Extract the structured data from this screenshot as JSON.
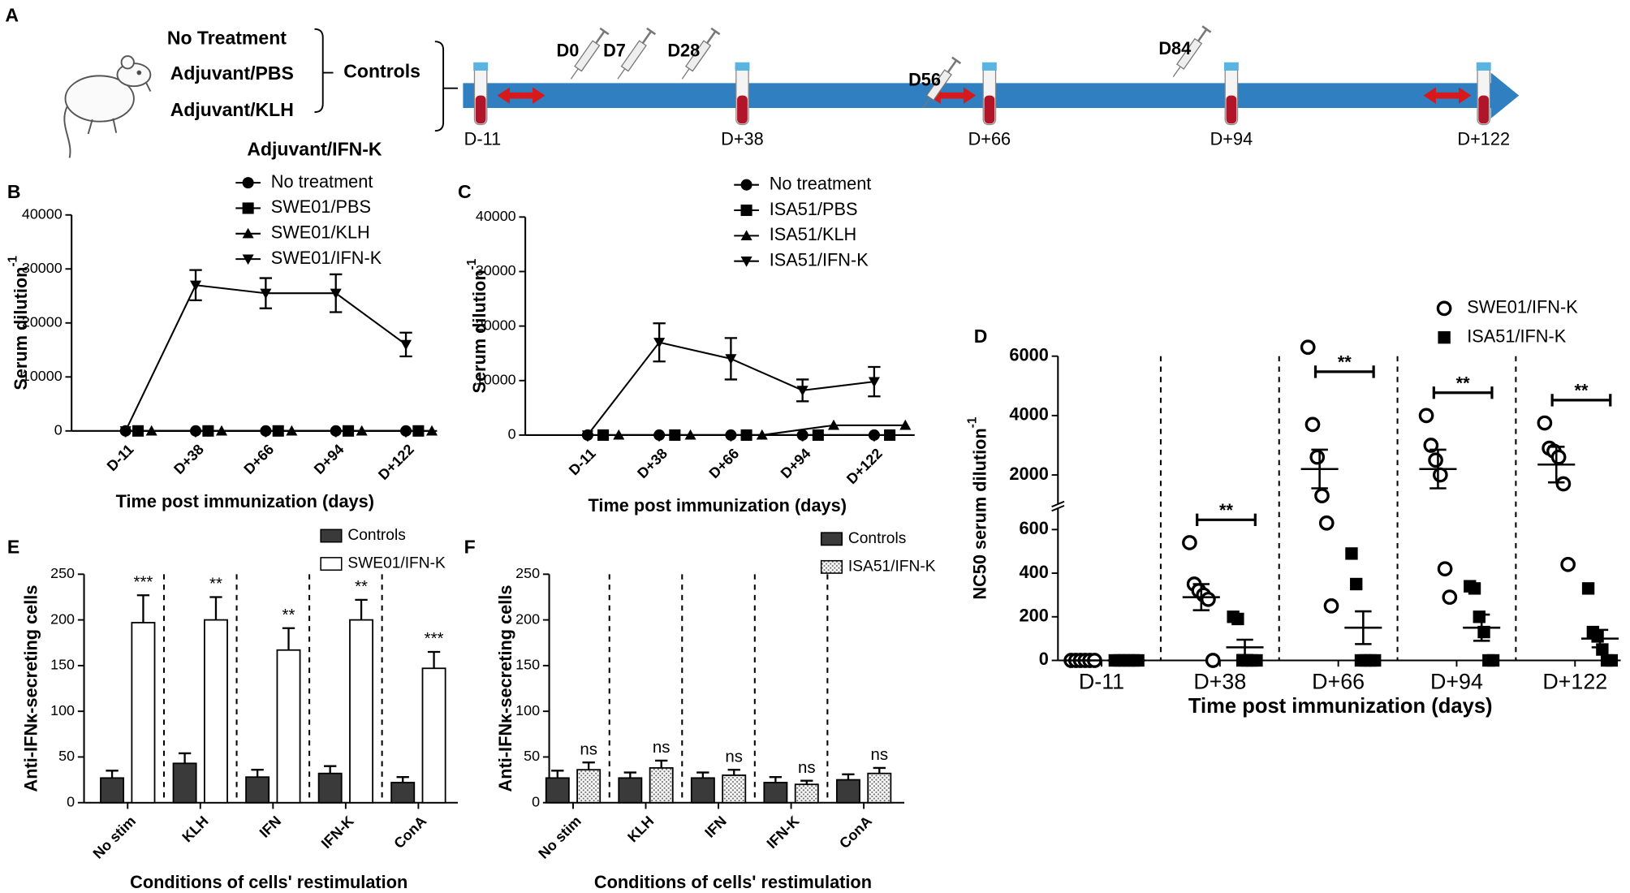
{
  "timeline": {
    "panel": "A",
    "groups": [
      "No Treatment",
      "Adjuvant/PBS",
      "Adjuvant/KLH"
    ],
    "controls": "Controls",
    "treated": "Adjuvant/IFN-K",
    "injections": [
      "D0",
      "D7",
      "D28",
      "D56",
      "D84"
    ],
    "bleeds": [
      "D-11",
      "D+38",
      "D+66",
      "D+94",
      "D+122"
    ]
  },
  "chart_data": [
    {
      "panel": "B",
      "type": "line",
      "ylabel": "Serum dilution",
      "ylabel_sup": "-1",
      "xlabel": "Time post immunization (days)",
      "categories": [
        "D-11",
        "D+38",
        "D+66",
        "D+94",
        "D+122"
      ],
      "ylim": [
        0,
        40000
      ],
      "yticks": [
        0,
        10000,
        20000,
        30000,
        40000
      ],
      "series": [
        {
          "name": "No treatment",
          "marker": "circle",
          "color": "#000000",
          "values": [
            0,
            0,
            0,
            0,
            0
          ]
        },
        {
          "name": "SWE01/PBS",
          "marker": "square",
          "color": "#000000",
          "values": [
            0,
            0,
            0,
            0,
            0
          ]
        },
        {
          "name": "SWE01/KLH",
          "marker": "triangle",
          "color": "#000000",
          "values": [
            0,
            0,
            0,
            0,
            0
          ]
        },
        {
          "name": "SWE01/IFN-K",
          "marker": "triangle-down",
          "color": "#000000",
          "values": [
            0,
            27000,
            25500,
            25500,
            16000
          ],
          "errors": [
            null,
            2800,
            2800,
            3500,
            2200
          ]
        }
      ]
    },
    {
      "panel": "C",
      "type": "line",
      "ylabel": "Serum dilution",
      "ylabel_sup": "-1",
      "xlabel": "Time post immunization (days)",
      "categories": [
        "D-11",
        "D+38",
        "D+66",
        "D+94",
        "D+122"
      ],
      "ylim": [
        0,
        40000
      ],
      "yticks": [
        0,
        10000,
        20000,
        30000,
        40000
      ],
      "series": [
        {
          "name": "No treatment",
          "marker": "circle",
          "color": "#000000",
          "values": [
            0,
            0,
            0,
            0,
            0
          ]
        },
        {
          "name": "ISA51/PBS",
          "marker": "square",
          "color": "#000000",
          "values": [
            0,
            0,
            0,
            0,
            0
          ]
        },
        {
          "name": "ISA51/KLH",
          "marker": "triangle",
          "color": "#000000",
          "values": [
            0,
            0,
            0,
            1800,
            1800
          ]
        },
        {
          "name": "ISA51/IFN-K",
          "marker": "triangle-down",
          "color": "#000000",
          "values": [
            0,
            17000,
            14000,
            8200,
            9800
          ],
          "errors": [
            null,
            3500,
            3800,
            2000,
            2700
          ]
        }
      ]
    },
    {
      "panel": "D",
      "type": "strip",
      "ylabel": "NC50 serum dilution",
      "ylabel_sup": "-1",
      "xlabel": "Time post immunization (days)",
      "categories": [
        "D-11",
        "D+38",
        "D+66",
        "D+94",
        "D+122"
      ],
      "ylim": [
        0,
        6000
      ],
      "ybreak": [
        700,
        1000
      ],
      "yticks": [
        0,
        200,
        400,
        600,
        2000,
        4000,
        6000
      ],
      "annotations": [
        null,
        "**",
        "**",
        "**",
        "**"
      ],
      "series": [
        {
          "name": "SWE01/IFN-K",
          "marker": "open-circle",
          "color": "#000000",
          "values": [
            [
              0,
              0,
              0,
              0,
              0,
              0
            ],
            [
              540,
              350,
              320,
              300,
              280,
              0
            ],
            [
              6300,
              3700,
              2600,
              1300,
              630,
              250
            ],
            [
              4000,
              3000,
              2500,
              2000,
              420,
              290
            ],
            [
              3750,
              2900,
              2800,
              2600,
              1700,
              440
            ]
          ],
          "means": [
            0,
            290,
            2200,
            2200,
            2350
          ],
          "errors": [
            0,
            60,
            650,
            650,
            600
          ]
        },
        {
          "name": "ISA51/IFN-K",
          "marker": "square",
          "color": "#000000",
          "values": [
            [
              0,
              0,
              0,
              0,
              0,
              0
            ],
            [
              200,
              190,
              0,
              0,
              0,
              0
            ],
            [
              490,
              350,
              0,
              0,
              0,
              0
            ],
            [
              340,
              330,
              200,
              130,
              0,
              0
            ],
            [
              330,
              130,
              110,
              50,
              0,
              0
            ]
          ],
          "means": [
            0,
            60,
            150,
            150,
            100
          ],
          "errors": [
            0,
            35,
            75,
            60,
            40
          ]
        }
      ]
    },
    {
      "panel": "E",
      "type": "bar",
      "ylabel": "Anti-IFNκ-secreting cells",
      "xlabel": "Conditions of cells' restimulation",
      "categories": [
        "No stim",
        "KLH",
        "IFN",
        "IFN-K",
        "ConA"
      ],
      "ylim": [
        0,
        250
      ],
      "yticks": [
        0,
        50,
        100,
        150,
        200,
        250
      ],
      "annotations": [
        "***",
        "**",
        "**",
        "**",
        "***"
      ],
      "series": [
        {
          "name": "Controls",
          "color": "#3a3a3a",
          "values": [
            27,
            43,
            28,
            32,
            22
          ],
          "errors": [
            8,
            11,
            8,
            8,
            6
          ]
        },
        {
          "name": "SWE01/IFN-K",
          "color": "#ffffff",
          "values": [
            197,
            200,
            167,
            200,
            147
          ],
          "errors": [
            30,
            25,
            24,
            22,
            18
          ]
        }
      ]
    },
    {
      "panel": "F",
      "type": "bar",
      "ylabel": "Anti-IFNκ-secreting cells",
      "xlabel": "Conditions of cells' restimulation",
      "categories": [
        "No stim",
        "KLH",
        "IFN",
        "IFN-K",
        "ConA"
      ],
      "ylim": [
        0,
        250
      ],
      "yticks": [
        0,
        50,
        100,
        150,
        200,
        250
      ],
      "annotations": [
        "ns",
        "ns",
        "ns",
        "ns",
        "ns"
      ],
      "series": [
        {
          "name": "Controls",
          "color": "#3a3a3a",
          "values": [
            27,
            27,
            27,
            22,
            25
          ],
          "errors": [
            8,
            6,
            6,
            6,
            6
          ]
        },
        {
          "name": "ISA51/IFN-K",
          "color": "#ffffff",
          "pattern": "dots",
          "values": [
            36,
            38,
            30,
            20,
            32
          ],
          "errors": [
            8,
            8,
            6,
            4,
            6
          ]
        }
      ]
    }
  ]
}
